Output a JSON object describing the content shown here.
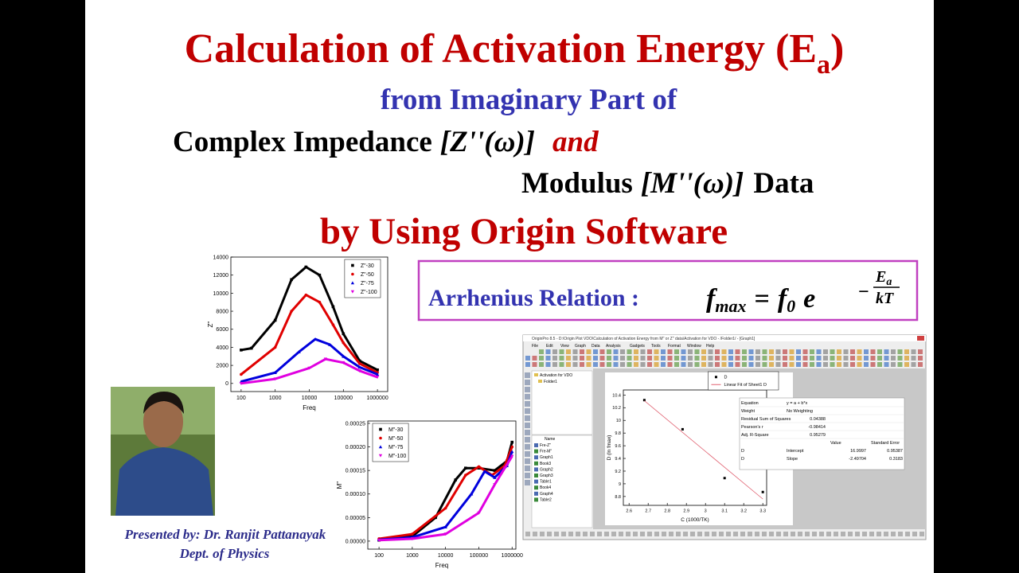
{
  "title": {
    "main": "Calculation of Activation Energy (E",
    "sub": "a",
    "close": ")"
  },
  "subtitle": "from Imaginary Part of",
  "line3": {
    "text": "Complex Impedance",
    "symbol": "[Z''(ω)]",
    "conj": "and"
  },
  "line4": {
    "text": "Modulus",
    "symbol": "[M''(ω)]",
    "tail": "Data"
  },
  "line5": "by Using Origin Software",
  "arrhenius": {
    "label": "Arrhenius Relation :",
    "lhs": "f",
    "lhs_sub": "max",
    "eq": "=",
    "f0": "f",
    "f0_sub": "0",
    "base": "e",
    "minus": "−",
    "num": "E",
    "num_sub": "a",
    "den": "kT"
  },
  "presenter": {
    "line1": "Presented by: Dr. Ranjit Pattanayak",
    "line2": "Dept. of Physics"
  },
  "charts": [
    {
      "type": "line",
      "xscale": "log",
      "xlabel": "Freq",
      "ylabel": "Z''",
      "legend": "upper right",
      "xlim": [
        50,
        2000000
      ],
      "ylim": [
        -900,
        14000
      ],
      "xticks": [
        100,
        1000,
        10000,
        100000,
        1000000
      ],
      "yticks": [
        0,
        2000,
        4000,
        6000,
        8000,
        10000,
        12000,
        14000
      ],
      "series": [
        {
          "name": "Z\"-30",
          "color": "#000000",
          "marker": "square",
          "line": true,
          "x": [
            100,
            200,
            1000,
            3000,
            8000,
            20000,
            50000,
            100000,
            300000,
            1000000
          ],
          "values": [
            3700,
            3900,
            7000,
            11500,
            12900,
            12000,
            8500,
            5500,
            2500,
            1500
          ]
        },
        {
          "name": "Z\"-50",
          "color": "#e00000",
          "marker": "circle",
          "line": true,
          "x": [
            100,
            1000,
            3000,
            8000,
            20000,
            50000,
            100000,
            300000,
            1000000
          ],
          "values": [
            1000,
            4000,
            8000,
            9800,
            9000,
            6500,
            4500,
            2200,
            1200
          ]
        },
        {
          "name": "Z\"-75",
          "color": "#0000dd",
          "marker": "triangle-up",
          "line": true,
          "x": [
            100,
            1000,
            5000,
            15000,
            40000,
            100000,
            300000,
            1000000
          ],
          "values": [
            200,
            1200,
            3500,
            4900,
            4300,
            3000,
            1800,
            1000
          ]
        },
        {
          "name": "Z\"-100",
          "color": "#e000e0",
          "marker": "triangle-down",
          "line": true,
          "x": [
            100,
            1000,
            10000,
            30000,
            100000,
            300000,
            1000000
          ],
          "values": [
            0,
            500,
            1700,
            2700,
            2300,
            1400,
            700
          ]
        }
      ]
    },
    {
      "type": "line",
      "xscale": "log",
      "xlabel": "Freq",
      "ylabel": "M''",
      "legend": "upper left",
      "xlim": [
        46,
        1300000
      ],
      "ylim": [
        -1.7e-05,
        0.000255
      ],
      "xticks": [
        100,
        1000,
        10000,
        100000,
        1000000
      ],
      "yticks": [
        {
          "value": 0,
          "label": "0.00000"
        },
        5e-05,
        {
          "value": 0.0001,
          "label": "0.00010"
        },
        0.00015,
        {
          "value": 0.0002,
          "label": "0.00020"
        },
        0.00025
      ],
      "series": [
        {
          "name": "M\"-30",
          "color": "#000000",
          "marker": "square",
          "line": true,
          "x": [
            100,
            1000,
            5000,
            20000,
            40000,
            100000,
            300000,
            700000,
            1000000
          ],
          "values": [
            2e-06,
            1e-05,
            5e-05,
            0.00013,
            0.000155,
            0.000155,
            0.00015,
            0.00017,
            0.00021
          ]
        },
        {
          "name": "M\"-50",
          "color": "#e00000",
          "marker": "circle",
          "line": true,
          "x": [
            100,
            1000,
            10000,
            40000,
            100000,
            250000,
            600000,
            1000000
          ],
          "values": [
            5e-06,
            1.5e-05,
            7e-05,
            0.00014,
            0.000158,
            0.00014,
            0.00016,
            0.0002
          ]
        },
        {
          "name": "M\"-75",
          "color": "#0000dd",
          "marker": "triangle-up",
          "line": true,
          "x": [
            100,
            1000,
            10000,
            60000,
            150000,
            300000,
            700000,
            1000000
          ],
          "values": [
            3e-06,
            8e-06,
            3e-05,
            0.0001,
            0.000148,
            0.000135,
            0.00016,
            0.00019
          ]
        },
        {
          "name": "M\"-100",
          "color": "#e000e0",
          "marker": "triangle-down",
          "line": true,
          "x": [
            100,
            1000,
            10000,
            100000,
            300000,
            600000,
            1000000
          ],
          "values": [
            2e-06,
            5e-06,
            1.5e-05,
            6e-05,
            0.00012,
            0.000155,
            0.00018
          ]
        }
      ]
    },
    {
      "type": "scatter",
      "xscale": "linear",
      "xlabel": "C (1000/TK)",
      "ylabel": "D (ln fmax)",
      "legend": "above",
      "xlim": [
        2.57,
        3.32
      ],
      "ylim": [
        8.66,
        10.48
      ],
      "xticks": [
        2.6,
        2.7,
        2.8,
        2.9,
        3.0,
        3.1,
        3.2,
        3.3
      ],
      "yticks": [
        8.8,
        9.0,
        9.2,
        9.4,
        9.6,
        9.8,
        10.0,
        10.2,
        10.4
      ],
      "series": [
        {
          "name": "D",
          "color": "#000000",
          "marker": "square",
          "line": false,
          "x": [
            2.68,
            2.88,
            3.1,
            3.3
          ],
          "values": [
            10.32,
            9.86,
            9.09,
            8.87
          ]
        },
        {
          "name": "Linear Fit of Sheet1 D",
          "color": "#e06070",
          "marker": "none",
          "line": true,
          "x": [
            2.68,
            3.3
          ],
          "values": [
            10.31,
            8.76
          ]
        }
      ]
    }
  ],
  "origin": {
    "titlebar": "OriginPro 8.5 - D:\\Origin Plot VDO\\Calculation of Activation Energy from M'' or Z'' data\\Activation for VDO - /Folder1/ - [Graph1]",
    "menu": [
      "File",
      "Edit",
      "View",
      "Graph",
      "Data",
      "Analysis",
      "Gadgets",
      "Tools",
      "Format",
      "Window",
      "Help"
    ],
    "tree": [
      "Activation for VDO",
      "Folder1"
    ],
    "list_header": "Name",
    "items": [
      "Fre-Z''",
      "Fre-M''",
      "Graph1",
      "Book3",
      "Graph2",
      "Graph3",
      "Table1",
      "Book4",
      "Graph4",
      "Table2"
    ],
    "table": {
      "rows": [
        [
          "Equation",
          "y = a + b*x"
        ],
        [
          "Weight",
          "No Weighting"
        ],
        [
          "Residual Sum of Squares",
          "0.04388"
        ],
        [
          "Pearson's r",
          "-0.98414"
        ],
        [
          "Adj. R-Square",
          "0.95279"
        ]
      ],
      "header": [
        "Value",
        "Standard Error"
      ],
      "params": [
        [
          "D",
          "Intercept",
          "16.9997",
          "0.95387"
        ],
        [
          "D",
          "Slope",
          "-2.49704",
          "0.3183"
        ]
      ]
    }
  }
}
